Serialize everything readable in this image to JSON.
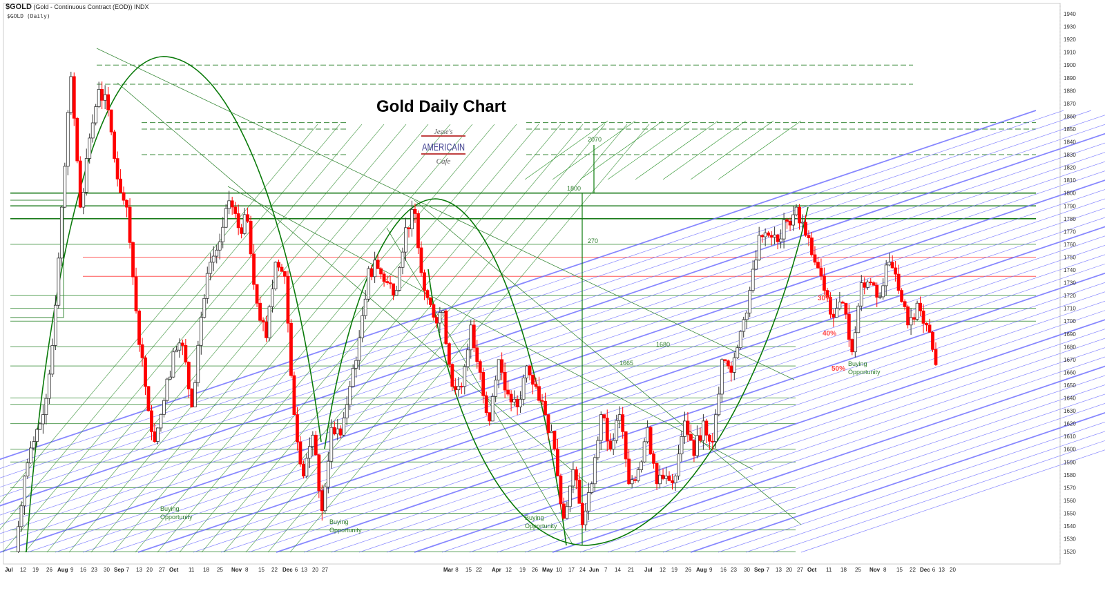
{
  "header": {
    "symbol": "$GOLD",
    "description": "(Gold - Continuous Contract (EOD)) INDX",
    "subtitle": "$GOLD (Daily)"
  },
  "logo": {
    "line1": "Jesse's",
    "line2": "AMERICAIN",
    "line3": "Cafe"
  },
  "chart_data": {
    "type": "candlestick",
    "title": "Gold Daily Chart",
    "ylim": [
      1515,
      1945
    ],
    "y_ticks": [
      1940,
      1930,
      1920,
      1910,
      1900,
      1890,
      1880,
      1870,
      1860,
      1850,
      1840,
      1830,
      1820,
      1810,
      1800,
      1790,
      1780,
      1770,
      1760,
      1750,
      1740,
      1730,
      1720,
      1710,
      1700,
      1690,
      1680,
      1670,
      1660,
      1650,
      1640,
      1630,
      1620,
      1610,
      1600,
      1590,
      1580,
      1570,
      1560,
      1550,
      1540,
      1530,
      1520
    ],
    "x_ticks": [
      "Jul",
      "12",
      "19",
      "26",
      "Aug",
      "9",
      "16",
      "23",
      "30",
      "Sep",
      "7",
      "13",
      "20",
      "27",
      "Oct",
      "11",
      "18",
      "25",
      "Nov",
      "8",
      "15",
      "22",
      "Dec",
      "6",
      "13",
      "20",
      "27",
      "Mar",
      "8",
      "15",
      "22",
      "Apr",
      "12",
      "19",
      "26",
      "May",
      "10",
      "17",
      "24",
      "Jun",
      "7",
      "14",
      "21",
      "Jul",
      "12",
      "19",
      "26",
      "Aug",
      "9",
      "16",
      "23",
      "30",
      "Sep",
      "7",
      "13",
      "20",
      "27",
      "Oct",
      "11",
      "18",
      "25",
      "Nov",
      "8",
      "15",
      "22",
      "Dec",
      "6",
      "13",
      "20"
    ],
    "closes": [
      1520,
      1579,
      1606,
      1627,
      1681,
      1789,
      1891,
      1789,
      1843,
      1881,
      1865,
      1811,
      1789,
      1708,
      1649,
      1606,
      1638,
      1676,
      1681,
      1633,
      1703,
      1746,
      1762,
      1794,
      1773,
      1778,
      1714,
      1687,
      1746,
      1735,
      1627,
      1579,
      1611,
      1552,
      1617,
      1611,
      1649,
      1687,
      1741,
      1741,
      1730,
      1724,
      1773,
      1784,
      1724,
      1703,
      1708,
      1649,
      1649,
      1697,
      1660,
      1622,
      1670,
      1643,
      1633,
      1665,
      1649,
      1627,
      1600,
      1546,
      1584,
      1541,
      1573,
      1627,
      1600,
      1627,
      1573,
      1584,
      1617,
      1573,
      1579,
      1579,
      1622,
      1595,
      1622,
      1606,
      1670,
      1660,
      1692,
      1724,
      1767,
      1767,
      1762,
      1778,
      1789,
      1767,
      1746,
      1724,
      1703,
      1714,
      1676,
      1730,
      1730,
      1719,
      1746,
      1724,
      1697,
      1714,
      1697,
      1666
    ],
    "solid_levels": [
      1800,
      1790,
      1780,
      1760,
      1720,
      1710,
      1700,
      1680,
      1665,
      1640,
      1635,
      1620,
      1600,
      1590,
      1570,
      1550,
      1537,
      1520
    ],
    "red_levels": [
      1750,
      1735
    ],
    "dashed_levels": [
      1900,
      1885,
      1855,
      1850,
      1830
    ],
    "annotations": {
      "l1800": "1800",
      "l2070": "2070",
      "l270": "270",
      "l1680": "1680",
      "l1665": "1665",
      "p30": "30%",
      "p40": "40%",
      "p50": "50%",
      "buy1": [
        "Buying",
        "Opportunity"
      ],
      "buy2": [
        "Buying",
        "Opportunity"
      ],
      "buy3": [
        "Buying",
        "Opportunity"
      ],
      "buy4": [
        "Buying",
        "Opportunity"
      ]
    },
    "colors": {
      "up": "#ffffff",
      "down": "#ff0000",
      "level": "#2e8b2e",
      "fan": "#4a4aff",
      "red_level": "#ff5555"
    }
  }
}
